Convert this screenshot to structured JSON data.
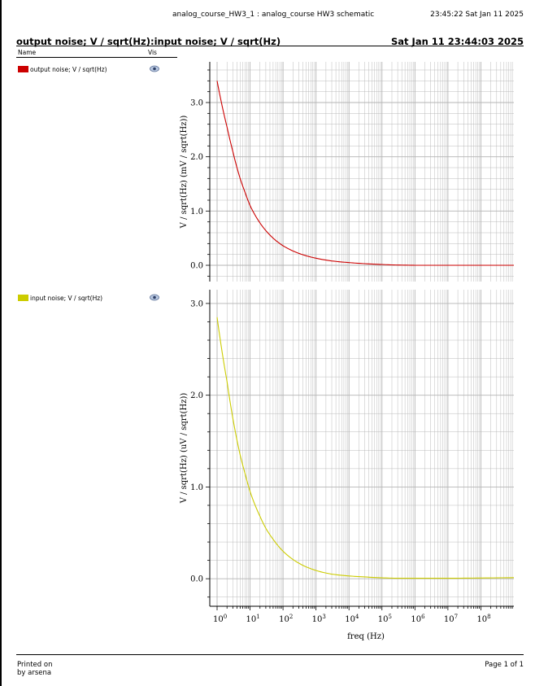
{
  "header": {
    "design_title": "analog_course_HW3_1 : analog_course HW3 schematic",
    "timestamp": "23:45:22  Sat Jan 11 2025"
  },
  "window": {
    "title": "output noise; V / sqrt(Hz):input noise; V / sqrt(Hz)",
    "date": "Sat Jan 11 23:44:03 2025"
  },
  "legend_columns": {
    "name": "Name",
    "vis": "Vis"
  },
  "legend": [
    {
      "label": "output noise; V / sqrt(Hz)",
      "color": "#cc0000",
      "icon": "eye-icon"
    },
    {
      "label": "input noise; V / sqrt(Hz)",
      "color": "#cccc00",
      "icon": "eye-icon"
    }
  ],
  "footer": {
    "printed_on": "Printed on",
    "printed_by": "by arsena",
    "page": "Page 1 of 1"
  },
  "colors": {
    "output_trace": "#cc0000",
    "input_trace": "#cccc00",
    "grid": "#b4b4b4"
  },
  "chart_data": [
    {
      "type": "line",
      "xscale": "log",
      "xlim": [
        1,
        1000000000
      ],
      "ylim": [
        -0.3,
        3.75
      ],
      "ylabel": "V / sqrt(Hz) (mV / sqrt(Hz))",
      "yticks": [
        0.0,
        1.0,
        2.0,
        3.0
      ],
      "ytick_labels": [
        "0.0",
        "1.0",
        "2.0",
        "3.0"
      ],
      "grid": true,
      "series": [
        {
          "name": "output noise; V / sqrt(Hz)",
          "x": [
            1,
            2,
            3,
            5,
            7,
            10,
            20,
            30,
            50,
            100,
            300,
            1000,
            3000,
            10000,
            30000,
            100000,
            300000,
            1000000,
            10000000,
            100000000,
            1000000000
          ],
          "y": [
            3.4,
            2.55,
            2.1,
            1.6,
            1.35,
            1.1,
            0.78,
            0.64,
            0.5,
            0.36,
            0.22,
            0.13,
            0.08,
            0.05,
            0.03,
            0.015,
            0.005,
            0.0,
            0.0,
            0.0,
            0.0
          ]
        }
      ]
    },
    {
      "type": "line",
      "xscale": "log",
      "xlim": [
        1,
        1000000000
      ],
      "ylim": [
        -0.3,
        3.15
      ],
      "xlabel": "freq (Hz)",
      "ylabel": "V / sqrt(Hz) (uV / sqrt(Hz))",
      "yticks": [
        0.0,
        1.0,
        2.0,
        3.0
      ],
      "ytick_labels": [
        "0.0",
        "1.0",
        "2.0",
        "3.0"
      ],
      "xticks": [
        1,
        10,
        100,
        1000,
        10000,
        100000,
        1000000,
        10000000,
        100000000
      ],
      "xtick_labels": [
        "10^0",
        "10^1",
        "10^2",
        "10^3",
        "10^4",
        "10^5",
        "10^6",
        "10^7",
        "10^8"
      ],
      "grid": true,
      "series": [
        {
          "name": "input noise; V / sqrt(Hz)",
          "x": [
            1,
            2,
            3,
            5,
            7,
            10,
            20,
            30,
            50,
            100,
            300,
            1000,
            3000,
            10000,
            30000,
            100000,
            300000,
            1000000,
            10000000,
            100000000,
            1000000000
          ],
          "y": [
            2.85,
            2.15,
            1.75,
            1.35,
            1.15,
            0.95,
            0.68,
            0.55,
            0.43,
            0.3,
            0.17,
            0.09,
            0.05,
            0.03,
            0.02,
            0.01,
            0.005,
            0.005,
            0.005,
            0.008,
            0.012
          ]
        }
      ]
    }
  ]
}
